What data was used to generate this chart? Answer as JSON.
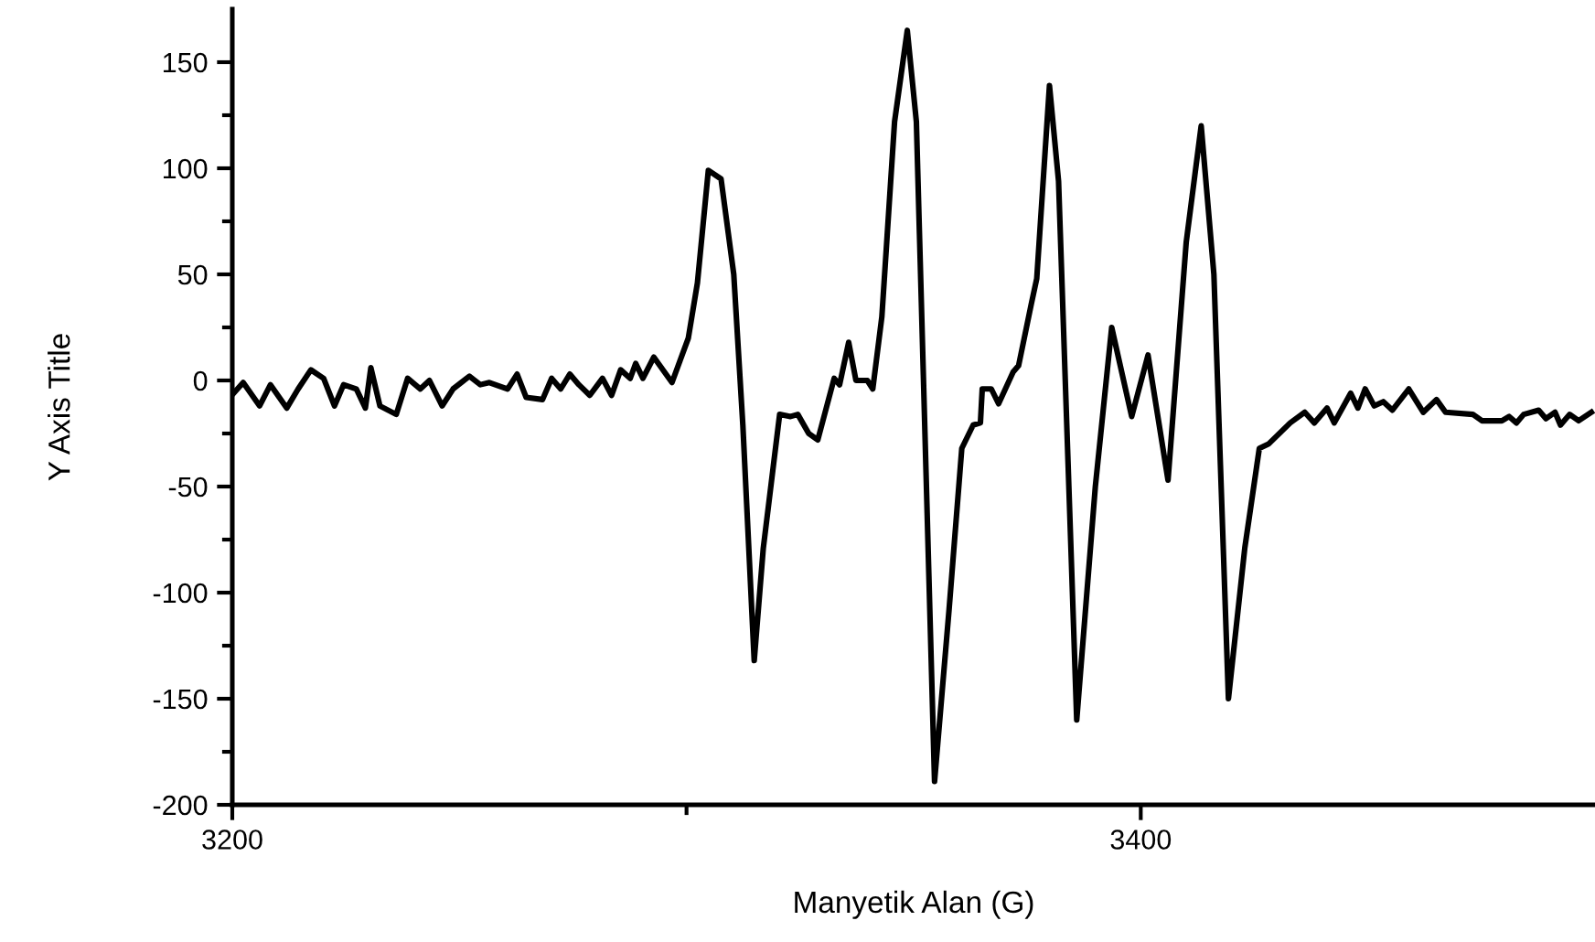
{
  "chart_data": {
    "type": "line",
    "xlabel": "Manyetik Alan (G)",
    "ylabel": "Y Axis Title",
    "xlim": [
      3200,
      3500
    ],
    "ylim": [
      -200,
      175
    ],
    "xticks": [
      3200,
      {
        "value": 3300,
        "label": null
      },
      3400
    ],
    "yticks": [
      -200,
      {
        "value": -175,
        "label": null
      },
      -150,
      {
        "value": -125,
        "label": null
      },
      -100,
      {
        "value": -75,
        "label": null
      },
      -50,
      {
        "value": -25,
        "label": null
      },
      0,
      {
        "value": 25,
        "label": null
      },
      50,
      {
        "value": 75,
        "label": null
      },
      100,
      {
        "value": 125,
        "label": null
      },
      150
    ],
    "marker": "none",
    "line_style": "solid",
    "series": [
      {
        "color": "#000000",
        "x": [
          3200.3,
          3202.4,
          3206.0,
          3208.4,
          3212.0,
          3214.5,
          3217.3,
          3220.1,
          3222.5,
          3224.5,
          3227.3,
          3229.3,
          3230.5,
          3232.5,
          3236.1,
          3238.6,
          3241.4,
          3243.4,
          3246.2,
          3248.6,
          3252.2,
          3254.6,
          3256.6,
          3260.6,
          3262.7,
          3264.7,
          3268.3,
          3270.3,
          3272.3,
          3274.3,
          3276.3,
          3278.7,
          3281.5,
          3283.5,
          3285.5,
          3287.6,
          3288.8,
          3290.4,
          3292.8,
          3296.8,
          3300.4,
          3302.4,
          3304.8,
          3307.6,
          3310.4,
          3312.4,
          3314.9,
          3316.9,
          3320.5,
          3322.9,
          3324.5,
          3326.9,
          3328.9,
          3332.5,
          3333.7,
          3335.7,
          3337.3,
          3339.8,
          3341.0,
          3343.0,
          3345.8,
          3348.6,
          3350.6,
          3354.6,
          3357.8,
          3360.6,
          3363.1,
          3364.7,
          3365.1,
          3367.1,
          3368.7,
          3371.9,
          3373.1,
          3375.9,
          3377.1,
          3379.9,
          3381.9,
          3385.9,
          3390.0,
          3393.6,
          3398.0,
          3401.6,
          3406.0,
          3410.0,
          3413.3,
          3416.1,
          3419.3,
          3422.9,
          3426.1,
          3428.1,
          3432.9,
          3436.1,
          3438.2,
          3441.0,
          3442.6,
          3446.2,
          3447.8,
          3449.4,
          3451.4,
          3453.4,
          3455.4,
          3459.0,
          3462.2,
          3465.1,
          3467.1,
          3473.1,
          3475.1,
          3479.5,
          3481.1,
          3482.7,
          3484.3,
          3487.6,
          3489.2,
          3491.2,
          3492.4,
          3494.4,
          3496.4,
          3499.2
        ],
        "values": [
          -6,
          -1,
          -12,
          -2,
          -13,
          -4,
          5,
          1,
          -12,
          -2,
          -4,
          -13,
          6,
          -12,
          -16,
          1,
          -4,
          0,
          -12,
          -4,
          2,
          -2,
          -1,
          -4,
          3,
          -8,
          -9,
          1,
          -4,
          3,
          -2,
          -7,
          1,
          -7,
          5,
          1,
          8,
          1,
          11,
          -1,
          20,
          46,
          99,
          95,
          50,
          -21,
          -132,
          -79,
          -16,
          -17,
          -16,
          -25,
          -28,
          1,
          -2,
          18,
          0,
          0,
          -4,
          30,
          122,
          165,
          122,
          -189,
          -108,
          -32,
          -21,
          -20,
          -4,
          -4,
          -11,
          4,
          7,
          36,
          48,
          139,
          94,
          -160,
          -50,
          25,
          -17,
          12,
          -47,
          65,
          120,
          50,
          -150,
          -79,
          -32,
          -30,
          -20,
          -15,
          -20,
          -13,
          -20,
          -6,
          -13,
          -4,
          -12,
          -10,
          -14,
          -4,
          -15,
          -9,
          -15,
          -16,
          -19,
          -19,
          -17,
          -20,
          -16,
          -14,
          -18,
          -15,
          -21,
          -16,
          -19,
          -15
        ]
      }
    ]
  }
}
